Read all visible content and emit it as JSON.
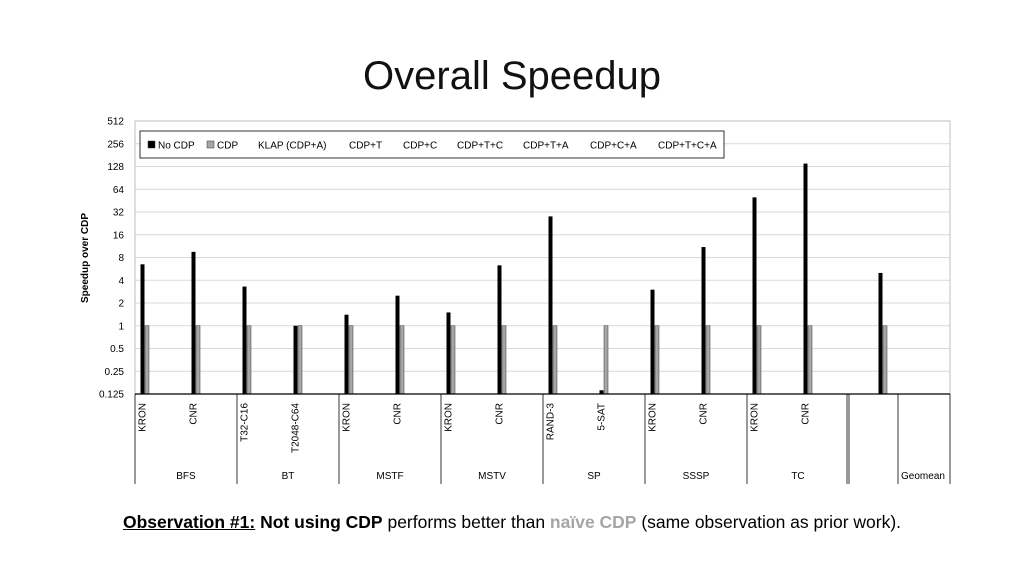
{
  "title": "Overall Speedup",
  "chart_data": {
    "type": "bar",
    "scale": "log2",
    "ylabel": "Speedup over CDP",
    "ylim": [
      0.125,
      512
    ],
    "yticks": [
      "0.125",
      "0.25",
      "0.5",
      "1",
      "2",
      "4",
      "8",
      "16",
      "32",
      "64",
      "128",
      "256",
      "512"
    ],
    "ytick_values": [
      0.125,
      0.25,
      0.5,
      1,
      2,
      4,
      8,
      16,
      32,
      64,
      128,
      256,
      512
    ],
    "grid": true,
    "legend_position": "top-left",
    "legend": [
      "No CDP",
      "CDP",
      "KLAP (CDP+A)",
      "CDP+T",
      "CDP+C",
      "CDP+T+C",
      "CDP+T+A",
      "CDP+C+A",
      "CDP+T+C+A"
    ],
    "groups": [
      {
        "name": "BFS",
        "categories": [
          "KRON",
          "CNR"
        ]
      },
      {
        "name": "BT",
        "categories": [
          "T32-C16",
          "T2048-C64"
        ]
      },
      {
        "name": "MSTF",
        "categories": [
          "KRON",
          "CNR"
        ]
      },
      {
        "name": "MSTV",
        "categories": [
          "KRON",
          "CNR"
        ]
      },
      {
        "name": "SP",
        "categories": [
          "RAND-3",
          "5-SAT"
        ]
      },
      {
        "name": "SSSP",
        "categories": [
          "KRON",
          "CNR"
        ]
      },
      {
        "name": "TC",
        "categories": [
          "KRON",
          "CNR"
        ]
      },
      {
        "name": "Geomean",
        "categories": [
          ""
        ]
      }
    ],
    "series": [
      {
        "name": "No CDP",
        "color": "#000000",
        "values": [
          6.5,
          9.5,
          3.3,
          1.0,
          1.4,
          2.5,
          1.5,
          6.3,
          28,
          0.14,
          3.0,
          11,
          50,
          140,
          5.0
        ]
      },
      {
        "name": "CDP",
        "color": "#a6a6a6",
        "values": [
          1,
          1,
          1,
          1,
          1,
          1,
          1,
          1,
          1,
          1,
          1,
          1,
          1,
          1,
          1
        ]
      }
    ]
  },
  "observation": {
    "label": "Observation #1:",
    "part1": "Not using CDP",
    "part2": " performs better than ",
    "part3": "naïve CDP",
    "part4": " (same observation as prior work)."
  }
}
